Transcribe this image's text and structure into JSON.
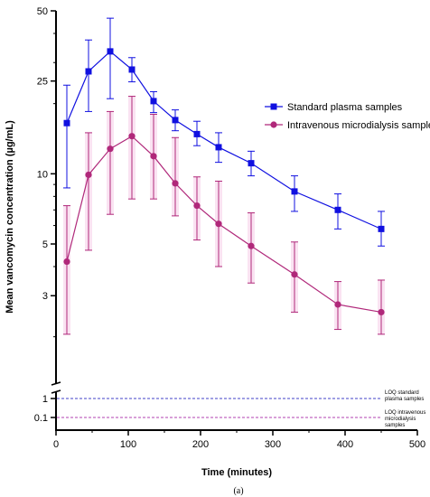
{
  "chart_data": {
    "type": "line",
    "xlabel": "Time (minutes)",
    "ylabel": "Mean vancomycin concentration (µg/mL)",
    "caption": "(a)",
    "y_scale": "log",
    "y_axis_break": true,
    "xlim": [
      0,
      500
    ],
    "ylim_main": [
      2,
      50
    ],
    "ylim_lower": [
      0.05,
      1.5
    ],
    "x_ticks": [
      "0",
      "100",
      "200",
      "300",
      "400",
      "500"
    ],
    "y_ticks_main": [
      "50",
      "25",
      "10",
      "5",
      "3"
    ],
    "y_ticks_lower": [
      "1",
      "0.1"
    ],
    "legend_position": "right",
    "series": [
      {
        "name": "Standard plasma samples",
        "color": "#1010e0",
        "marker": "square",
        "x": [
          15,
          45,
          75,
          105,
          135,
          165,
          195,
          225,
          270,
          330,
          390,
          450
        ],
        "y": [
          16.5,
          27.5,
          33.5,
          28.0,
          20.5,
          17.0,
          14.8,
          13.0,
          11.1,
          8.4,
          7.0,
          5.8
        ],
        "err_low": [
          8.7,
          18.5,
          21.0,
          24.8,
          18.3,
          15.3,
          13.2,
          11.2,
          9.8,
          6.9,
          5.8,
          4.9
        ],
        "err_high": [
          24.0,
          37.5,
          46.5,
          31.5,
          22.5,
          18.8,
          16.8,
          15.0,
          12.5,
          9.8,
          8.2,
          6.9
        ]
      },
      {
        "name": "Intravenous microdialysis samples",
        "color": "#b0287a",
        "marker": "circle",
        "x": [
          15,
          45,
          75,
          105,
          135,
          165,
          195,
          225,
          270,
          330,
          390,
          450
        ],
        "y": [
          4.2,
          9.9,
          12.8,
          14.5,
          11.9,
          9.1,
          7.3,
          6.1,
          4.9,
          3.7,
          2.75,
          2.55
        ],
        "err_low": [
          2.05,
          4.7,
          6.7,
          7.8,
          7.8,
          6.6,
          5.2,
          4.0,
          3.4,
          2.55,
          2.15,
          2.05
        ],
        "err_high": [
          7.3,
          15.0,
          18.5,
          21.5,
          18.0,
          14.3,
          9.7,
          9.3,
          6.8,
          5.1,
          3.45,
          3.5
        ]
      }
    ],
    "loq_lines": [
      {
        "label_lines": [
          "LOQ standard",
          "plasma samples"
        ],
        "y": 1,
        "color": "#4040c8"
      },
      {
        "label_lines": [
          "LOQ intravenous",
          "microdialysis",
          "samples"
        ],
        "y": 0.1,
        "color": "#b040b0"
      }
    ]
  }
}
